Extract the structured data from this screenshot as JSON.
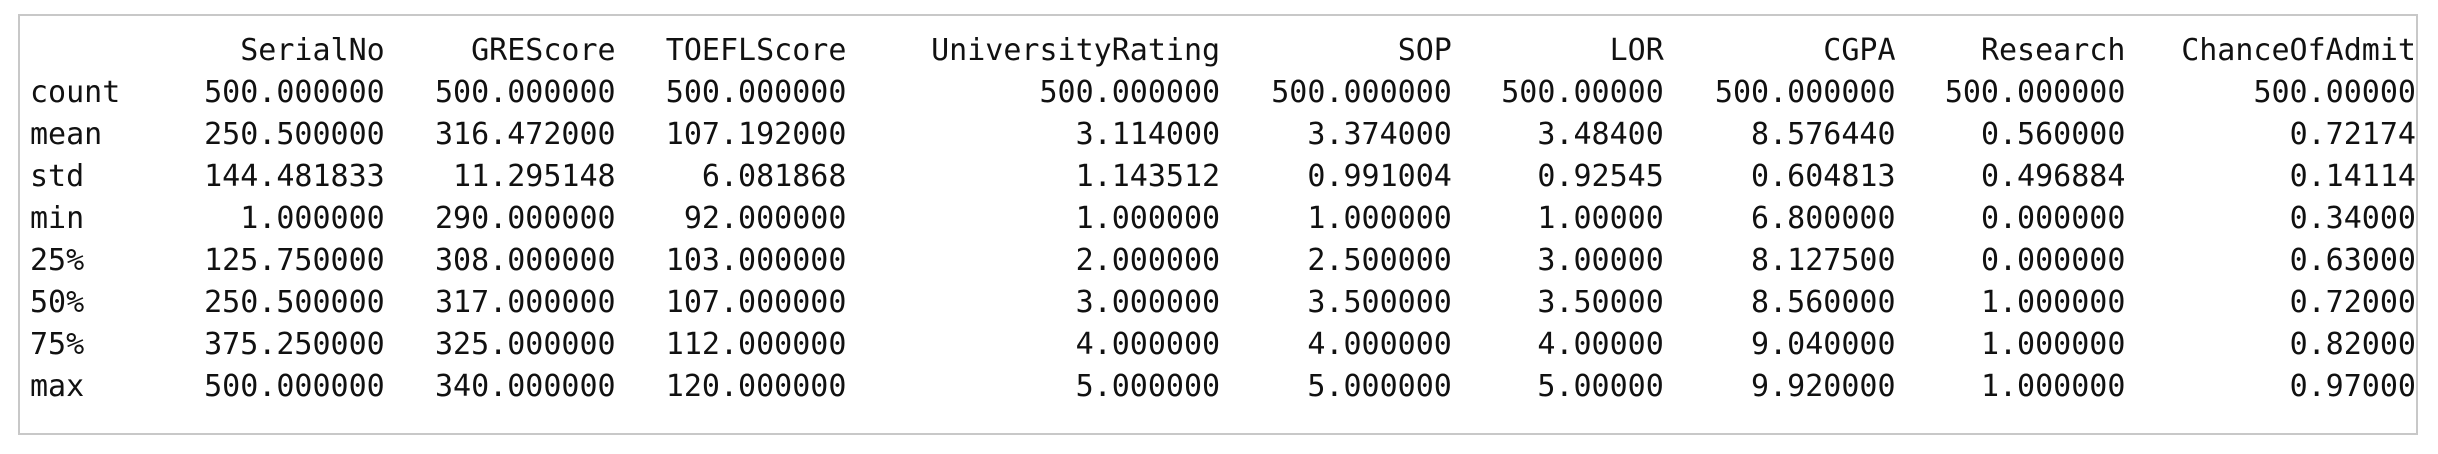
{
  "table": {
    "columns": [
      "SerialNo",
      "GREScore",
      "TOEFLScore",
      "UniversityRating",
      "SOP",
      "LOR",
      "CGPA",
      "Research",
      "ChanceOfAdmit"
    ],
    "rows": [
      {
        "label": "count",
        "values": [
          "500.000000",
          "500.000000",
          "500.000000",
          "500.000000",
          "500.000000",
          "500.00000",
          "500.000000",
          "500.000000",
          "500.00000"
        ]
      },
      {
        "label": "mean",
        "values": [
          "250.500000",
          "316.472000",
          "107.192000",
          "3.114000",
          "3.374000",
          "3.48400",
          "8.576440",
          "0.560000",
          "0.72174"
        ]
      },
      {
        "label": "std",
        "values": [
          "144.481833",
          "11.295148",
          "6.081868",
          "1.143512",
          "0.991004",
          "0.92545",
          "0.604813",
          "0.496884",
          "0.14114"
        ]
      },
      {
        "label": "min",
        "values": [
          "1.000000",
          "290.000000",
          "92.000000",
          "1.000000",
          "1.000000",
          "1.00000",
          "6.800000",
          "0.000000",
          "0.34000"
        ]
      },
      {
        "label": "25%",
        "values": [
          "125.750000",
          "308.000000",
          "103.000000",
          "2.000000",
          "2.500000",
          "3.00000",
          "8.127500",
          "0.000000",
          "0.63000"
        ]
      },
      {
        "label": "50%",
        "values": [
          "250.500000",
          "317.000000",
          "107.000000",
          "3.000000",
          "3.500000",
          "3.50000",
          "8.560000",
          "1.000000",
          "0.72000"
        ]
      },
      {
        "label": "75%",
        "values": [
          "375.250000",
          "325.000000",
          "112.000000",
          "4.000000",
          "4.000000",
          "4.00000",
          "9.040000",
          "1.000000",
          "0.82000"
        ]
      },
      {
        "label": "max",
        "values": [
          "500.000000",
          "340.000000",
          "120.000000",
          "5.000000",
          "5.000000",
          "5.00000",
          "9.920000",
          "1.000000",
          "0.97000"
        ]
      }
    ]
  },
  "colors": {
    "text": "#111111",
    "border": "#c8c8c8",
    "background": "#ffffff"
  }
}
